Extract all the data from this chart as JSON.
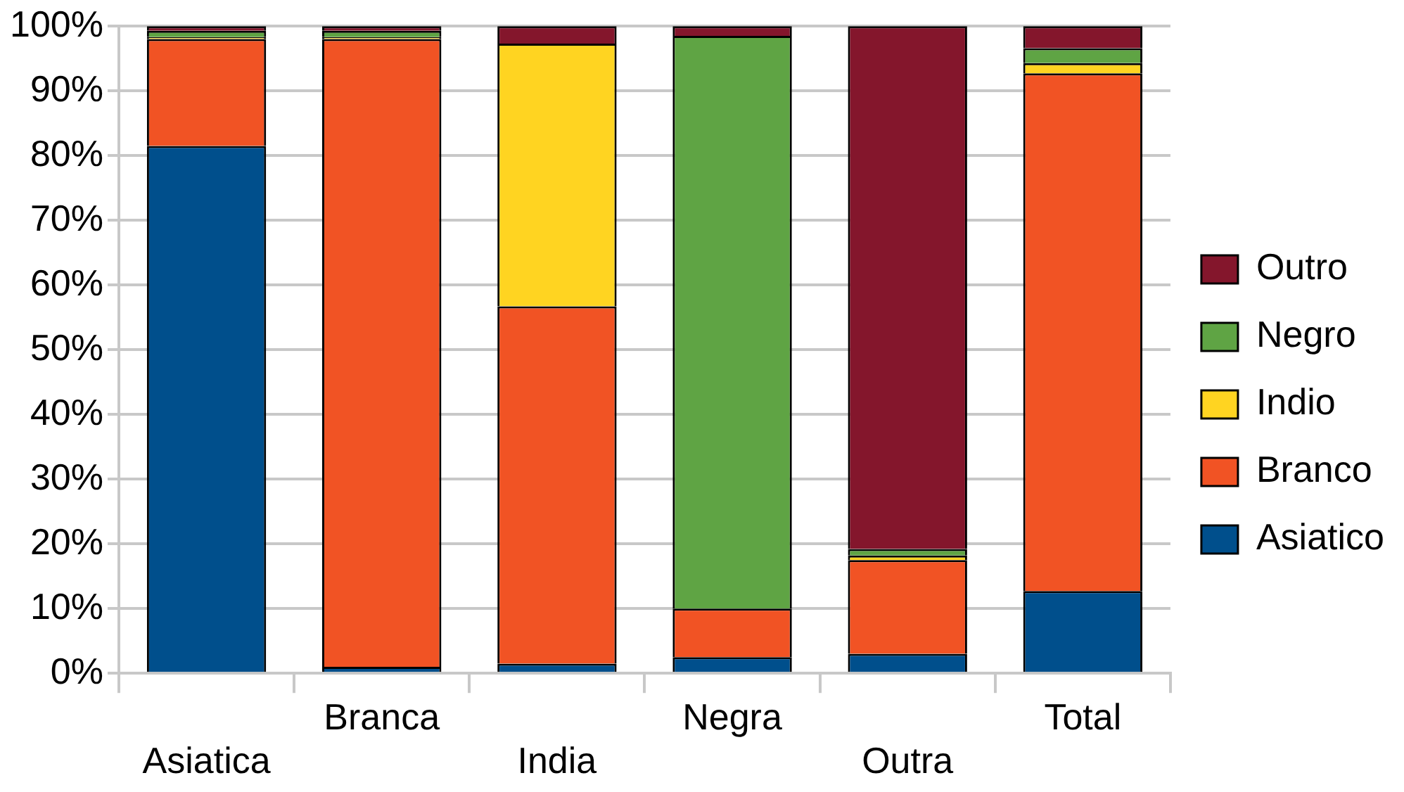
{
  "chart_data": {
    "type": "bar",
    "stacked": true,
    "categories": [
      "Asiatica",
      "Branca",
      "India",
      "Negra",
      "Outra",
      "Total"
    ],
    "series": [
      {
        "name": "Asiatico",
        "color": "#004f8c",
        "values": [
          81.5,
          1.0,
          1.5,
          2.5,
          3.0,
          12.7
        ]
      },
      {
        "name": "Branco",
        "color": "#f15324",
        "values": [
          16.5,
          97.0,
          55.2,
          7.5,
          14.5,
          80.0
        ]
      },
      {
        "name": "Indio",
        "color": "#ffd421",
        "values": [
          0.3,
          0.3,
          40.6,
          0,
          0.7,
          1.6
        ]
      },
      {
        "name": "Negro",
        "color": "#5fa444",
        "values": [
          1.0,
          1.0,
          0,
          88.5,
          1.0,
          2.3
        ]
      },
      {
        "name": "Outro",
        "color": "#84162c",
        "values": [
          0.7,
          0.7,
          2.7,
          1.5,
          80.8,
          3.4
        ]
      }
    ],
    "ylim": [
      0,
      100
    ],
    "yticks": [
      {
        "value": 0,
        "label": "0%"
      },
      {
        "value": 10,
        "label": "10%"
      },
      {
        "value": 20,
        "label": "20%"
      },
      {
        "value": 30,
        "label": "30%"
      },
      {
        "value": 40,
        "label": "40%"
      },
      {
        "value": 50,
        "label": "50%"
      },
      {
        "value": 60,
        "label": "60%"
      },
      {
        "value": 70,
        "label": "70%"
      },
      {
        "value": 80,
        "label": "80%"
      },
      {
        "value": 90,
        "label": "90%"
      },
      {
        "value": 100,
        "label": "100%"
      }
    ],
    "grid": "y",
    "legend": "right"
  }
}
